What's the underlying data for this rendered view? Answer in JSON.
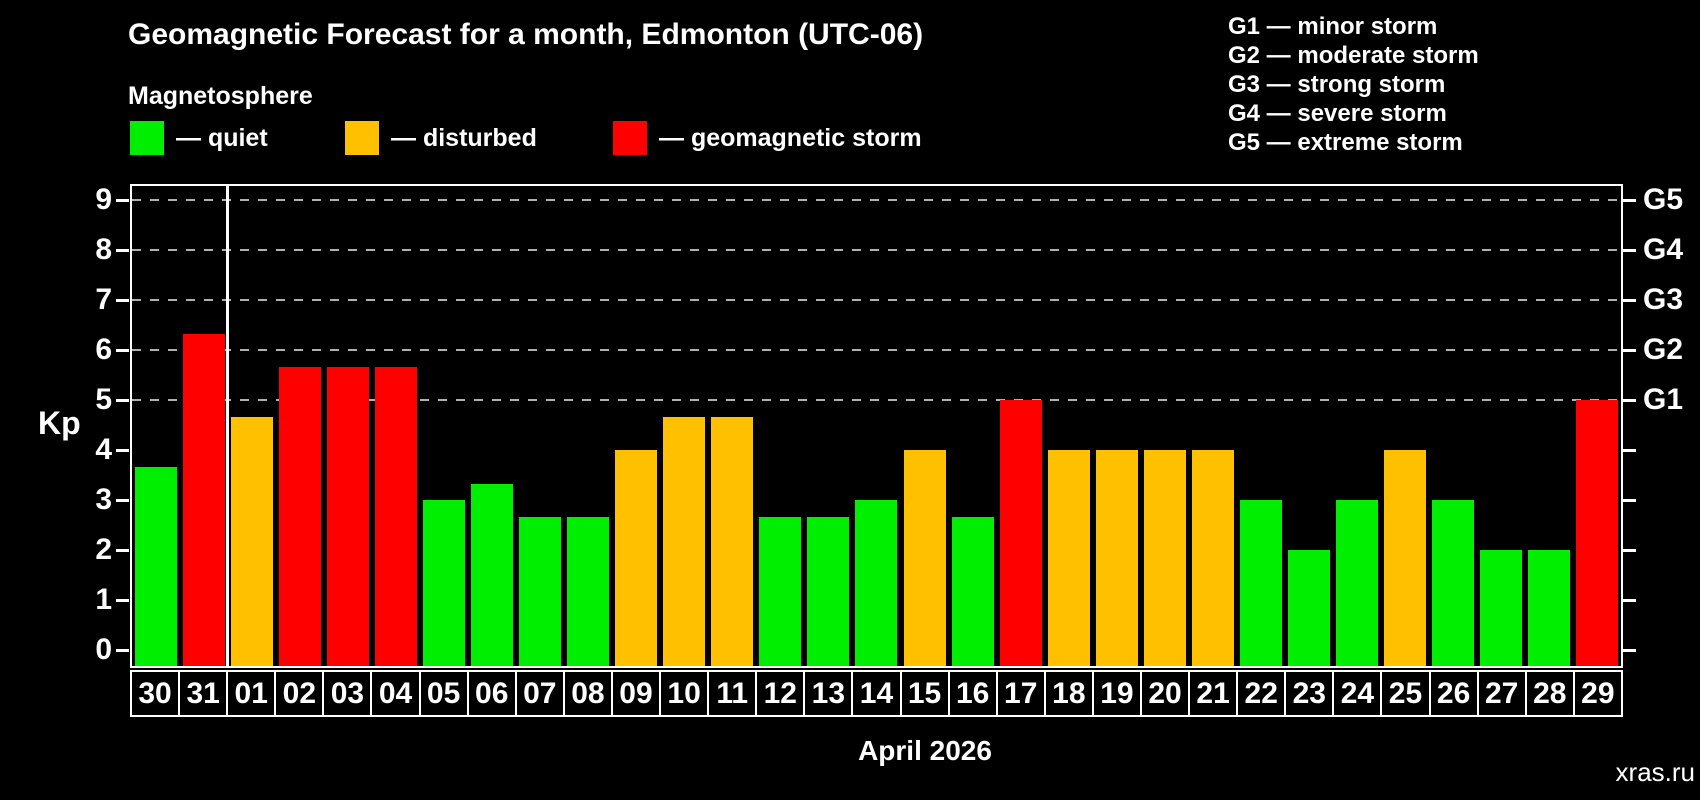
{
  "header": {
    "title": "Geomagnetic Forecast for a month, Edmonton (UTC-06)",
    "subtitle": "Magnetosphere"
  },
  "legend": {
    "items": [
      {
        "key": "quiet",
        "label": "— quiet"
      },
      {
        "key": "disturbed",
        "label": "— disturbed"
      },
      {
        "key": "storm",
        "label": "— geomagnetic storm"
      }
    ]
  },
  "storm_scale_legend": [
    "G1 — minor storm",
    "G2 — moderate storm",
    "G3 — strong storm",
    "G4 — severe storm",
    "G5 — extreme storm"
  ],
  "colors": {
    "quiet": "#00ee00",
    "disturbed": "#ffc000",
    "storm": "#ff0000",
    "background": "#000000",
    "text": "#ffffff",
    "grid": "#b0b0b0",
    "watermark": "#8a8a8a"
  },
  "axes": {
    "y_label": "Kp",
    "y_ticks": [
      0,
      1,
      2,
      3,
      4,
      5,
      6,
      7,
      8,
      9
    ],
    "g_labels": [
      {
        "label": "G1",
        "kp": 5
      },
      {
        "label": "G2",
        "kp": 6
      },
      {
        "label": "G3",
        "kp": 7
      },
      {
        "label": "G4",
        "kp": 8
      },
      {
        "label": "G5",
        "kp": 9
      }
    ],
    "x_label": "April 2026"
  },
  "watermark": "xras.ru",
  "chart_data": {
    "type": "bar",
    "title": "Geomagnetic Forecast for a month, Edmonton (UTC-06)",
    "xlabel": "April 2026",
    "ylabel": "Kp",
    "ylim": [
      0,
      9
    ],
    "grid": "dashed horizontal lines at Kp 5,6,7,8,9 corresponding to G1-G5",
    "legend_position": "top-left",
    "categories": [
      "30",
      "31",
      "01",
      "02",
      "03",
      "04",
      "05",
      "06",
      "07",
      "08",
      "09",
      "10",
      "11",
      "12",
      "13",
      "14",
      "15",
      "16",
      "17",
      "18",
      "19",
      "20",
      "21",
      "22",
      "23",
      "24",
      "25",
      "26",
      "27",
      "28",
      "29"
    ],
    "values": [
      3.67,
      6.33,
      4.67,
      5.67,
      5.67,
      5.67,
      3,
      3.33,
      2.67,
      2.67,
      4,
      4.67,
      4.67,
      2.67,
      2.67,
      3,
      4,
      2.67,
      5,
      4,
      4,
      4,
      4,
      3,
      2,
      3,
      4,
      3,
      2,
      2,
      5
    ],
    "statuses": [
      "quiet",
      "storm",
      "disturbed",
      "storm",
      "storm",
      "storm",
      "quiet",
      "quiet",
      "quiet",
      "quiet",
      "disturbed",
      "disturbed",
      "disturbed",
      "quiet",
      "quiet",
      "quiet",
      "disturbed",
      "quiet",
      "storm",
      "disturbed",
      "disturbed",
      "disturbed",
      "disturbed",
      "quiet",
      "quiet",
      "quiet",
      "disturbed",
      "quiet",
      "quiet",
      "quiet",
      "storm"
    ],
    "month_separator_after_index": 1
  }
}
